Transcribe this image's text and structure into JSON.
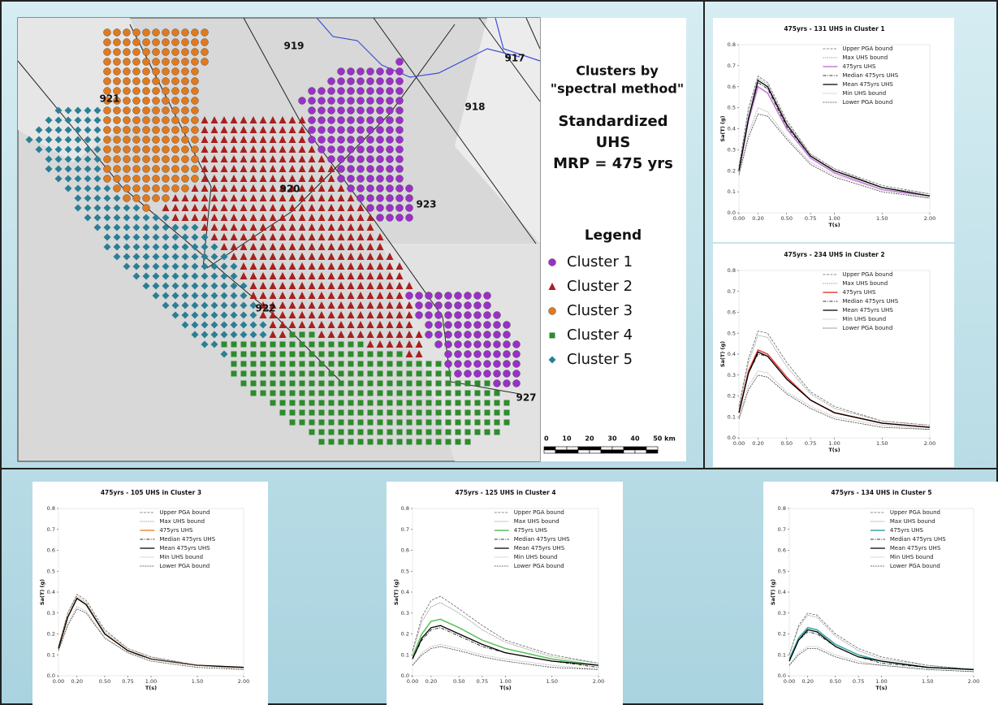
{
  "map": {
    "title_lines": [
      "Clusters by",
      "\"spectral method\""
    ],
    "subtitle_lines": [
      "Standardized",
      "UHS",
      "MRP = 475 yrs"
    ],
    "legend_title": "Legend",
    "legend": [
      {
        "label": "Cluster 1",
        "color": "#9b30c8"
      },
      {
        "label": "Cluster 2",
        "color": "#a8201f"
      },
      {
        "label": "Cluster 3",
        "color": "#e07a1f"
      },
      {
        "label": "Cluster 4",
        "color": "#2e8b2e"
      },
      {
        "label": "Cluster 5",
        "color": "#2b7f95"
      }
    ],
    "zones": [
      "919",
      "917",
      "918",
      "921",
      "920",
      "923",
      "922",
      "927"
    ],
    "scale": [
      "0",
      "10",
      "20",
      "30",
      "40",
      "50 km"
    ]
  },
  "chart_data": [
    {
      "type": "line",
      "title": "475yrs - 131 UHS in Cluster 1",
      "x_label": "T(s)",
      "y_label": "Sa(T) (g)",
      "x": [
        0,
        0.1,
        0.2,
        0.3,
        0.5,
        0.75,
        1,
        1.5,
        2
      ],
      "xlim": [
        0,
        2
      ],
      "ylim": [
        0,
        0.8
      ],
      "xticks": [
        {
          "value": 0,
          "label": "0.00"
        },
        {
          "value": 0.2,
          "label": "0.20"
        },
        {
          "value": 0.5,
          "label": "0.50"
        },
        {
          "value": 0.75,
          "label": "0.75"
        },
        {
          "value": 1,
          "label": "1.00"
        },
        {
          "value": 1.5,
          "label": "1.50"
        },
        {
          "value": 2,
          "label": "2.00"
        }
      ],
      "yticks": [
        {
          "value": 0,
          "label": "0.0"
        },
        0.1,
        0.2,
        0.3,
        0.4,
        0.5,
        0.6,
        0.7,
        0.8
      ],
      "series": [
        {
          "name": "Upper PGA bound",
          "color": "#666666",
          "values": [
            0.22,
            0.5,
            0.65,
            0.62,
            0.44,
            0.28,
            0.21,
            0.13,
            0.09
          ]
        },
        {
          "name": "Max UHS bound",
          "color": "#888888",
          "values": [
            0.21,
            0.48,
            0.64,
            0.61,
            0.43,
            0.28,
            0.21,
            0.12,
            0.09
          ]
        },
        {
          "name": "475yrs UHS",
          "color": "#c77bdc",
          "values": [
            0.2,
            0.44,
            0.6,
            0.57,
            0.4,
            0.26,
            0.19,
            0.11,
            0.08
          ]
        },
        {
          "name": "Median 475yrs UHS",
          "color": "#333333",
          "values": [
            0.2,
            0.45,
            0.62,
            0.59,
            0.41,
            0.27,
            0.2,
            0.12,
            0.08
          ]
        },
        {
          "name": "Mean 475yrs UHS",
          "color": "#000000",
          "values": [
            0.2,
            0.45,
            0.63,
            0.6,
            0.42,
            0.27,
            0.2,
            0.12,
            0.08
          ]
        },
        {
          "name": "Min UHS bound",
          "color": "#999999",
          "values": [
            0.19,
            0.38,
            0.5,
            0.48,
            0.36,
            0.24,
            0.18,
            0.11,
            0.07
          ]
        },
        {
          "name": "Lower PGA bound",
          "color": "#444444",
          "values": [
            0.18,
            0.36,
            0.47,
            0.46,
            0.35,
            0.23,
            0.17,
            0.1,
            0.07
          ]
        }
      ]
    },
    {
      "type": "line",
      "title": "475yrs - 234 UHS in Cluster 2",
      "x_label": "T(s)",
      "y_label": "Sa(T) (g)",
      "x": [
        0,
        0.1,
        0.2,
        0.3,
        0.5,
        0.75,
        1,
        1.5,
        2
      ],
      "xlim": [
        0,
        2
      ],
      "ylim": [
        0,
        0.8
      ],
      "xticks": [
        {
          "value": 0,
          "label": "0.00"
        },
        {
          "value": 0.2,
          "label": "0.20"
        },
        {
          "value": 0.5,
          "label": "0.50"
        },
        {
          "value": 0.75,
          "label": "0.75"
        },
        {
          "value": 1,
          "label": "1.00"
        },
        {
          "value": 1.5,
          "label": "1.50"
        },
        {
          "value": 2,
          "label": "2.00"
        }
      ],
      "yticks": [
        {
          "value": 0,
          "label": "0.0"
        },
        0.1,
        0.2,
        0.3,
        0.4,
        0.5,
        0.6,
        0.7,
        0.8
      ],
      "series": [
        {
          "name": "Upper PGA bound",
          "color": "#666666",
          "values": [
            0.15,
            0.38,
            0.51,
            0.5,
            0.36,
            0.22,
            0.15,
            0.08,
            0.06
          ]
        },
        {
          "name": "Max UHS bound",
          "color": "#888888",
          "values": [
            0.14,
            0.36,
            0.49,
            0.48,
            0.34,
            0.21,
            0.14,
            0.08,
            0.06
          ]
        },
        {
          "name": "475yrs UHS",
          "color": "#e8403a",
          "values": [
            0.12,
            0.32,
            0.42,
            0.4,
            0.29,
            0.18,
            0.12,
            0.07,
            0.05
          ]
        },
        {
          "name": "Median 475yrs UHS",
          "color": "#333333",
          "values": [
            0.12,
            0.31,
            0.4,
            0.39,
            0.28,
            0.18,
            0.12,
            0.07,
            0.05
          ]
        },
        {
          "name": "Mean 475yrs UHS",
          "color": "#000000",
          "values": [
            0.12,
            0.31,
            0.41,
            0.39,
            0.28,
            0.18,
            0.12,
            0.07,
            0.05
          ]
        },
        {
          "name": "Min UHS bound",
          "color": "#999999",
          "values": [
            0.1,
            0.25,
            0.32,
            0.31,
            0.22,
            0.15,
            0.1,
            0.06,
            0.04
          ]
        },
        {
          "name": "Lower PGA bound",
          "color": "#444444",
          "values": [
            0.09,
            0.23,
            0.3,
            0.29,
            0.21,
            0.14,
            0.09,
            0.05,
            0.04
          ]
        }
      ]
    },
    {
      "type": "line",
      "title": "475yrs - 105 UHS in Cluster 3",
      "x_label": "T(s)",
      "y_label": "Sa(T) (g)",
      "x": [
        0,
        0.1,
        0.2,
        0.3,
        0.5,
        0.75,
        1,
        1.5,
        2
      ],
      "xlim": [
        0,
        2
      ],
      "ylim": [
        0,
        0.8
      ],
      "xticks": [
        {
          "value": 0,
          "label": "0.00"
        },
        {
          "value": 0.2,
          "label": "0.20"
        },
        {
          "value": 0.5,
          "label": "0.50"
        },
        {
          "value": 0.75,
          "label": "0.75"
        },
        {
          "value": 1,
          "label": "1.00"
        },
        {
          "value": 1.5,
          "label": "1.50"
        },
        {
          "value": 2,
          "label": "2.00"
        }
      ],
      "yticks": [
        {
          "value": 0,
          "label": "0.0"
        },
        0.1,
        0.2,
        0.3,
        0.4,
        0.5,
        0.6,
        0.7,
        0.8
      ],
      "series": [
        {
          "name": "Upper PGA bound",
          "color": "#666666",
          "values": [
            0.14,
            0.3,
            0.39,
            0.36,
            0.22,
            0.13,
            0.09,
            0.05,
            0.04
          ]
        },
        {
          "name": "Max UHS bound",
          "color": "#888888",
          "values": [
            0.14,
            0.3,
            0.38,
            0.35,
            0.21,
            0.13,
            0.09,
            0.05,
            0.04
          ]
        },
        {
          "name": "475yrs UHS",
          "color": "#e9913f",
          "values": [
            0.13,
            0.28,
            0.37,
            0.34,
            0.2,
            0.12,
            0.08,
            0.05,
            0.04
          ]
        },
        {
          "name": "Median 475yrs UHS",
          "color": "#333333",
          "values": [
            0.13,
            0.28,
            0.37,
            0.34,
            0.2,
            0.12,
            0.08,
            0.05,
            0.04
          ]
        },
        {
          "name": "Mean 475yrs UHS",
          "color": "#000000",
          "values": [
            0.13,
            0.28,
            0.37,
            0.34,
            0.2,
            0.12,
            0.08,
            0.05,
            0.04
          ]
        },
        {
          "name": "Min UHS bound",
          "color": "#999999",
          "values": [
            0.12,
            0.25,
            0.33,
            0.31,
            0.18,
            0.11,
            0.08,
            0.05,
            0.03
          ]
        },
        {
          "name": "Lower PGA bound",
          "color": "#444444",
          "values": [
            0.12,
            0.24,
            0.32,
            0.3,
            0.18,
            0.11,
            0.07,
            0.04,
            0.03
          ]
        }
      ]
    },
    {
      "type": "line",
      "title": "475yrs - 125 UHS in Cluster 4",
      "x_label": "T(s)",
      "y_label": "Sa(T) (g)",
      "x": [
        0,
        0.1,
        0.2,
        0.3,
        0.5,
        0.75,
        1,
        1.5,
        2
      ],
      "xlim": [
        0,
        2
      ],
      "ylim": [
        0,
        0.8
      ],
      "xticks": [
        {
          "value": 0,
          "label": "0.00"
        },
        {
          "value": 0.2,
          "label": "0.20"
        },
        {
          "value": 0.5,
          "label": "0.50"
        },
        {
          "value": 0.75,
          "label": "0.75"
        },
        {
          "value": 1,
          "label": "1.00"
        },
        {
          "value": 1.5,
          "label": "1.50"
        },
        {
          "value": 2,
          "label": "2.00"
        }
      ],
      "yticks": [
        {
          "value": 0,
          "label": "0.0"
        },
        0.1,
        0.2,
        0.3,
        0.4,
        0.5,
        0.6,
        0.7,
        0.8
      ],
      "series": [
        {
          "name": "Upper PGA bound",
          "color": "#666666",
          "values": [
            0.12,
            0.28,
            0.36,
            0.38,
            0.32,
            0.24,
            0.17,
            0.1,
            0.06
          ]
        },
        {
          "name": "Max UHS bound",
          "color": "#888888",
          "values": [
            0.11,
            0.26,
            0.33,
            0.35,
            0.3,
            0.22,
            0.16,
            0.09,
            0.06
          ]
        },
        {
          "name": "475yrs UHS",
          "color": "#5cc35c",
          "values": [
            0.09,
            0.2,
            0.26,
            0.27,
            0.23,
            0.17,
            0.13,
            0.08,
            0.05
          ]
        },
        {
          "name": "Median 475yrs UHS",
          "color": "#333333",
          "values": [
            0.08,
            0.17,
            0.22,
            0.23,
            0.19,
            0.14,
            0.11,
            0.07,
            0.04
          ]
        },
        {
          "name": "Mean 475yrs UHS",
          "color": "#000000",
          "values": [
            0.08,
            0.18,
            0.23,
            0.24,
            0.2,
            0.15,
            0.11,
            0.07,
            0.05
          ]
        },
        {
          "name": "Min UHS bound",
          "color": "#999999",
          "values": [
            0.05,
            0.11,
            0.14,
            0.15,
            0.13,
            0.1,
            0.08,
            0.05,
            0.03
          ]
        },
        {
          "name": "Lower PGA bound",
          "color": "#444444",
          "values": [
            0.05,
            0.1,
            0.13,
            0.14,
            0.12,
            0.09,
            0.07,
            0.04,
            0.03
          ]
        }
      ]
    },
    {
      "type": "line",
      "title": "475yrs - 134 UHS in Cluster 5",
      "x_label": "T(s)",
      "y_label": "Sa(T) (g)",
      "x": [
        0,
        0.1,
        0.2,
        0.3,
        0.5,
        0.75,
        1,
        1.5,
        2
      ],
      "xlim": [
        0,
        2
      ],
      "ylim": [
        0,
        0.8
      ],
      "xticks": [
        {
          "value": 0,
          "label": "0.00"
        },
        {
          "value": 0.2,
          "label": "0.20"
        },
        {
          "value": 0.5,
          "label": "0.50"
        },
        {
          "value": 0.75,
          "label": "0.75"
        },
        {
          "value": 1,
          "label": "1.00"
        },
        {
          "value": 1.5,
          "label": "1.50"
        },
        {
          "value": 2,
          "label": "2.00"
        }
      ],
      "yticks": [
        {
          "value": 0,
          "label": "0.0"
        },
        0.1,
        0.2,
        0.3,
        0.4,
        0.5,
        0.6,
        0.7,
        0.8
      ],
      "series": [
        {
          "name": "Upper PGA bound",
          "color": "#666666",
          "values": [
            0.1,
            0.24,
            0.3,
            0.29,
            0.2,
            0.13,
            0.09,
            0.05,
            0.03
          ]
        },
        {
          "name": "Max UHS bound",
          "color": "#888888",
          "values": [
            0.1,
            0.23,
            0.29,
            0.28,
            0.19,
            0.12,
            0.08,
            0.05,
            0.03
          ]
        },
        {
          "name": "475yrs UHS",
          "color": "#3aa7a7",
          "values": [
            0.08,
            0.18,
            0.23,
            0.22,
            0.15,
            0.1,
            0.07,
            0.04,
            0.03
          ]
        },
        {
          "name": "Median 475yrs UHS",
          "color": "#333333",
          "values": [
            0.07,
            0.17,
            0.21,
            0.2,
            0.14,
            0.09,
            0.06,
            0.04,
            0.03
          ]
        },
        {
          "name": "Mean 475yrs UHS",
          "color": "#000000",
          "values": [
            0.07,
            0.17,
            0.22,
            0.21,
            0.14,
            0.09,
            0.07,
            0.04,
            0.03
          ]
        },
        {
          "name": "Min UHS bound",
          "color": "#999999",
          "values": [
            0.05,
            0.11,
            0.14,
            0.14,
            0.1,
            0.07,
            0.05,
            0.03,
            0.02
          ]
        },
        {
          "name": "Lower PGA bound",
          "color": "#444444",
          "values": [
            0.05,
            0.1,
            0.13,
            0.13,
            0.09,
            0.06,
            0.05,
            0.03,
            0.02
          ]
        }
      ]
    }
  ]
}
